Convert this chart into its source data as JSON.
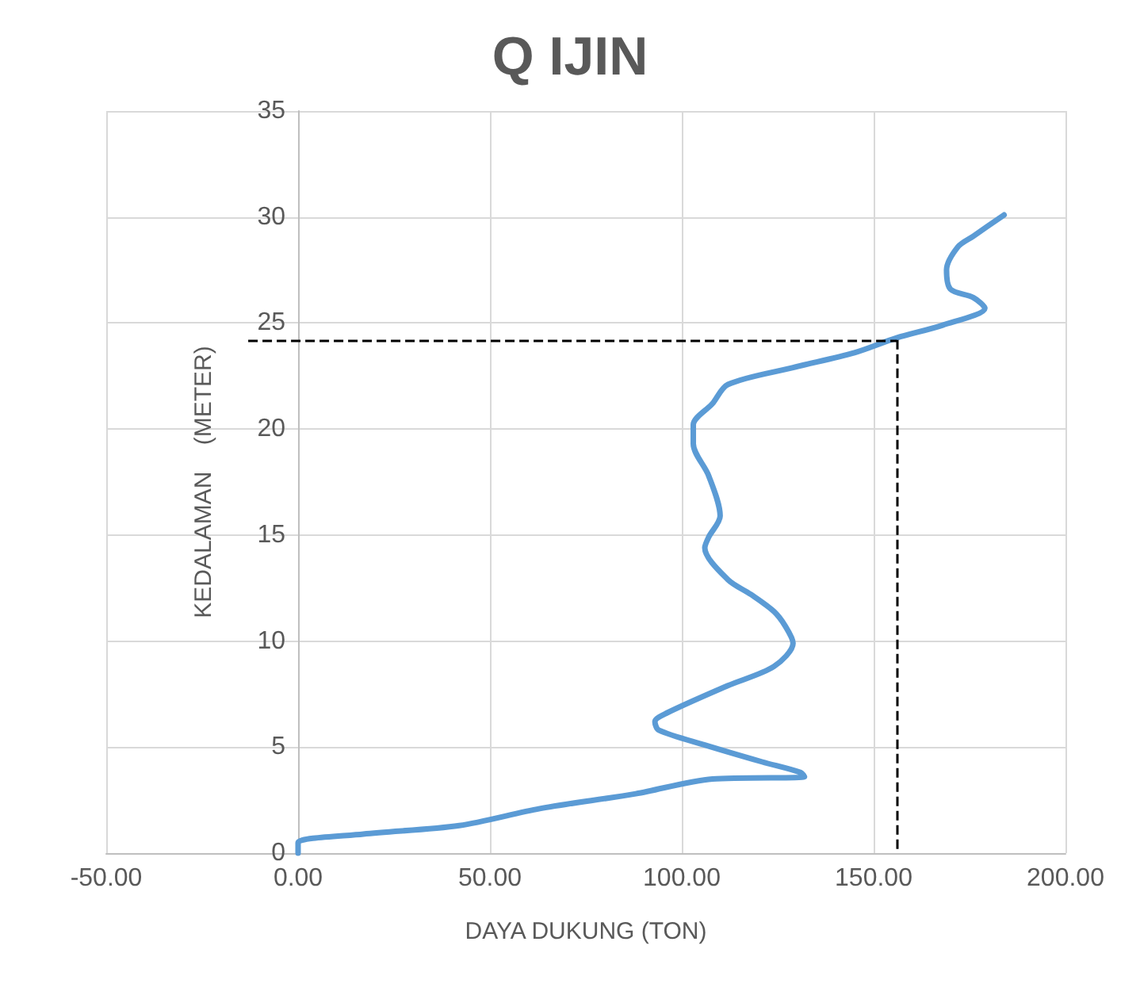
{
  "chart_data": {
    "type": "line",
    "title": "Q IJIN",
    "xlabel": "DAYA DUKUNG (TON)",
    "ylabel": "KEDALAMAN    (METER)",
    "series": [
      {
        "color": "#5b9bd5",
        "x": [
          0,
          0,
          17,
          42,
          63,
          88,
          108,
          132,
          131,
          121,
          106,
          94,
          93,
          96,
          112,
          124,
          129,
          127,
          124,
          118,
          112,
          106,
          107,
          110,
          107,
          103,
          103,
          108,
          112,
          129,
          145,
          156,
          168,
          179,
          176,
          170,
          169,
          172,
          176,
          184
        ],
        "values": [
          0,
          0.5,
          0.9,
          1.3,
          2.1,
          2.8,
          3.5,
          3.6,
          3.8,
          4.3,
          5.1,
          5.8,
          6.2,
          6.6,
          7.9,
          8.8,
          9.9,
          10.7,
          11.4,
          12.2,
          12.9,
          14.4,
          14.9,
          15.9,
          17.8,
          19.3,
          20.2,
          21.2,
          22.1,
          22.9,
          23.6,
          24.3,
          24.9,
          25.7,
          26.2,
          26.6,
          27.5,
          28.6,
          29.1,
          30.1
        ]
      }
    ],
    "xlim": [
      -50,
      200
    ],
    "xticks": [
      {
        "value": -50,
        "label": "-50.00"
      },
      {
        "value": 0,
        "label": "0.00"
      },
      {
        "value": 50,
        "label": "50.00"
      },
      {
        "value": 100,
        "label": "100.00"
      },
      {
        "value": 150,
        "label": "150.00"
      },
      {
        "value": 200,
        "label": "200.00"
      }
    ],
    "ylim": [
      0,
      35
    ],
    "yticks": [
      0,
      5,
      10,
      15,
      20,
      25,
      30,
      35
    ],
    "ref_lines": [
      {
        "axis": "y",
        "value": 24.2,
        "color": "#000000",
        "line_style": "dashed"
      },
      {
        "axis": "x",
        "value": 156,
        "color": "#000000",
        "line_style": "dashed"
      }
    ],
    "grid": true,
    "marker": "none",
    "line_style": "solid"
  }
}
